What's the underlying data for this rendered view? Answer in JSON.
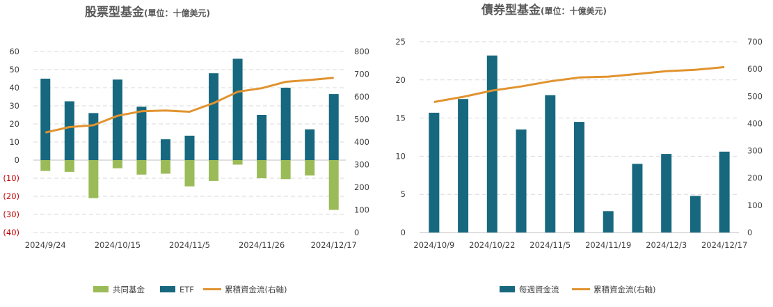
{
  "chart_data": [
    {
      "type": "bar",
      "title": "股票型基金",
      "subtitle": "(單位：十億美元)",
      "categories": [
        "2024/9/24",
        "2024/10/1",
        "2024/10/8",
        "2024/10/15",
        "2024/10/22",
        "2024/10/29",
        "2024/11/5",
        "2024/11/12",
        "2024/11/19",
        "2024/11/26",
        "2024/12/3",
        "2024/12/10",
        "2024/12/17"
      ],
      "x_tick_labels": [
        "2024/9/24",
        "2024/10/15",
        "2024/11/5",
        "2024/11/26",
        "2024/12/17"
      ],
      "x_tick_index": [
        0,
        3,
        6,
        9,
        12
      ],
      "series": [
        {
          "name": "共同基金",
          "kind": "bar",
          "color": "#9bbb59",
          "values": [
            -6,
            -6.5,
            -21,
            -4.5,
            -8,
            -7.5,
            -14.5,
            -11.5,
            -2.5,
            -10,
            -10.5,
            -8.5,
            -27.5
          ]
        },
        {
          "name": "ETF",
          "kind": "bar",
          "color": "#17687e",
          "values": [
            45,
            32.5,
            26,
            44.5,
            29.5,
            11.5,
            13.5,
            48,
            56,
            25,
            40,
            17,
            36.5
          ]
        },
        {
          "name": "累積資金流(右軸)",
          "kind": "line",
          "axis": "right",
          "color": "#e1932f",
          "values": [
            442,
            466,
            474,
            516,
            536,
            539,
            534,
            572,
            622,
            638,
            666,
            674,
            684
          ]
        }
      ],
      "y_left": {
        "min": -40,
        "max": 60,
        "step": 10,
        "ticks": [
          "(40)",
          "(30)",
          "(20)",
          "(10)",
          "0",
          "10",
          "20",
          "30",
          "40",
          "50",
          "60"
        ]
      },
      "y_right": {
        "min": 0,
        "max": 800,
        "step": 100,
        "ticks": [
          "0",
          "100",
          "200",
          "300",
          "400",
          "500",
          "600",
          "700",
          "800"
        ]
      },
      "legend": [
        "共同基金",
        "ETF",
        "累積資金流(右軸)"
      ],
      "legend_position": "bottom",
      "grid": true
    },
    {
      "type": "bar",
      "title": "債券型基金",
      "subtitle": "(單位：十億美元)",
      "categories": [
        "2024/10/9",
        "2024/10/15",
        "2024/10/22",
        "2024/10/29",
        "2024/11/5",
        "2024/11/12",
        "2024/11/19",
        "2024/11/26",
        "2024/12/3",
        "2024/12/10",
        "2024/12/17"
      ],
      "x_tick_labels": [
        "2024/10/9",
        "2024/10/22",
        "2024/11/5",
        "2024/11/19",
        "2024/12/3",
        "2024/12/17"
      ],
      "x_tick_index": [
        0,
        2,
        4,
        6,
        8,
        10
      ],
      "series": [
        {
          "name": "每週資金流",
          "kind": "bar",
          "color": "#17687e",
          "values": [
            15.7,
            17.5,
            23.2,
            13.5,
            18,
            14.5,
            2.8,
            9,
            10.3,
            4.8,
            10.6
          ]
        },
        {
          "name": "累積資金流(右軸)",
          "kind": "line",
          "axis": "right",
          "color": "#e1932f",
          "values": [
            479,
            498,
            521,
            536,
            555,
            569,
            572,
            582,
            592,
            597,
            607
          ]
        }
      ],
      "y_left": {
        "min": 0,
        "max": 25,
        "step": 5,
        "ticks": [
          "0",
          "5",
          "10",
          "15",
          "20",
          "25"
        ]
      },
      "y_right": {
        "min": 0,
        "max": 700,
        "step": 100,
        "ticks": [
          "0",
          "100",
          "200",
          "300",
          "400",
          "500",
          "600",
          "700"
        ]
      },
      "legend": [
        "每週資金流",
        "累積資金流(右軸)"
      ],
      "legend_position": "bottom",
      "grid": true
    }
  ]
}
